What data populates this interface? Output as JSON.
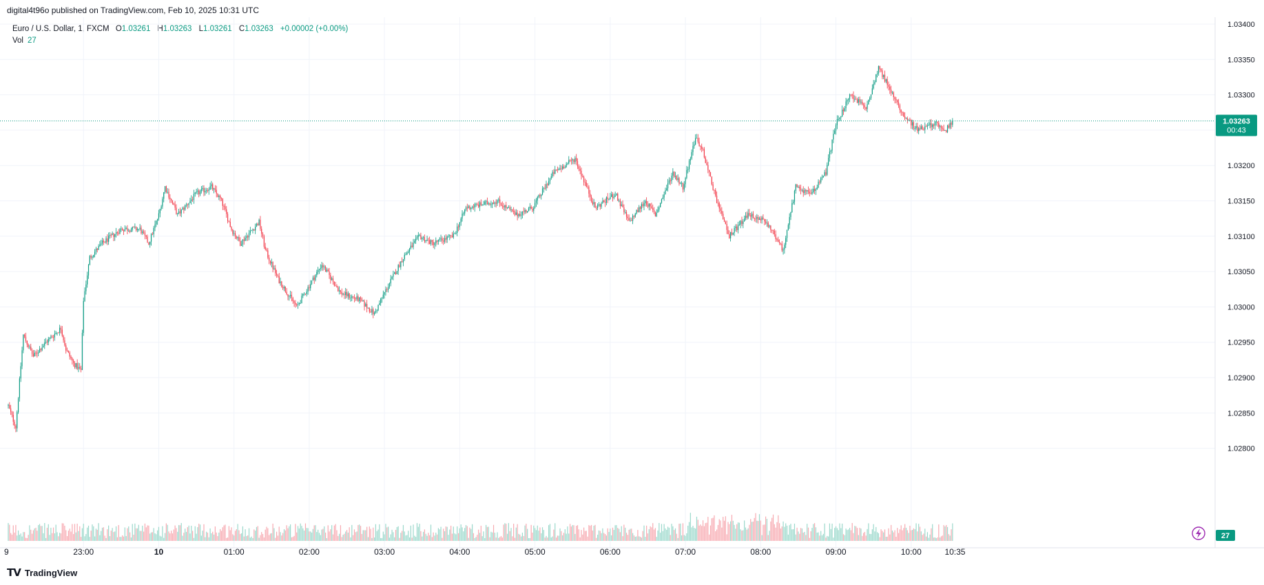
{
  "header": {
    "published": "digital4t96o published on TradingView.com, Feb 10, 2025 10:31 UTC"
  },
  "legend": {
    "symbol": "Euro / U.S. Dollar, 1, FXCM",
    "o_label": "O",
    "o": "1.03261",
    "h_label": "H",
    "h": "1.03263",
    "l_label": "L",
    "l": "1.03261",
    "c_label": "C",
    "c": "1.03263",
    "change": "+0.00002 (+0.00%)",
    "vol_label": "Vol",
    "vol": "27"
  },
  "price_badge": {
    "price": "1.03263",
    "countdown": "00:43"
  },
  "volume_badge": "27",
  "footer": {
    "brand": "TradingView"
  },
  "colors": {
    "up": "#089981",
    "down": "#f23645",
    "up_vol": "#9ad8cb",
    "down_vol": "#f7a9b0",
    "grid": "#f0f3fa",
    "axis_text": "#131722"
  },
  "chart_data": {
    "type": "candlestick",
    "symbol": "EUR/USD",
    "interval": "1 minute",
    "y_ticks": [
      1.034,
      1.0335,
      1.033,
      1.0325,
      1.032,
      1.0315,
      1.031,
      1.0305,
      1.03,
      1.0295,
      1.029,
      1.0285,
      1.028
    ],
    "y_tick_labels": [
      "1.03400",
      "1.03350",
      "1.03300",
      "1.03250",
      "1.03200",
      "1.03150",
      "1.03100",
      "1.03050",
      "1.03000",
      "1.02950",
      "1.02900",
      "1.02850",
      "1.02800"
    ],
    "ylim": [
      1.02785,
      1.0341
    ],
    "x_ticks": [
      {
        "label": "23:00",
        "minute": 60
      },
      {
        "label": "10",
        "minute": 120
      },
      {
        "label": "01:00",
        "minute": 180
      },
      {
        "label": "02:00",
        "minute": 240
      },
      {
        "label": "03:00",
        "minute": 300
      },
      {
        "label": "04:00",
        "minute": 360
      },
      {
        "label": "05:00",
        "minute": 420
      },
      {
        "label": "06:00",
        "minute": 480
      },
      {
        "label": "07:00",
        "minute": 540
      },
      {
        "label": "08:00",
        "minute": 600
      },
      {
        "label": "09:00",
        "minute": 660
      },
      {
        "label": "10:00",
        "minute": 720
      },
      {
        "label": "10:35",
        "minute": 755
      }
    ],
    "x_edge_label": "9",
    "last_price": 1.03263,
    "close_path": [
      {
        "minute": 0,
        "close": 1.0286
      },
      {
        "minute": 6,
        "close": 1.0283
      },
      {
        "minute": 12,
        "close": 1.0296
      },
      {
        "minute": 20,
        "close": 1.0293
      },
      {
        "minute": 30,
        "close": 1.0295
      },
      {
        "minute": 42,
        "close": 1.0297
      },
      {
        "minute": 46,
        "close": 1.0294
      },
      {
        "minute": 52,
        "close": 1.0292
      },
      {
        "minute": 58,
        "close": 1.0291
      },
      {
        "minute": 60,
        "close": 1.0301
      },
      {
        "minute": 65,
        "close": 1.0307
      },
      {
        "minute": 75,
        "close": 1.0309
      },
      {
        "minute": 90,
        "close": 1.0311
      },
      {
        "minute": 105,
        "close": 1.0311
      },
      {
        "minute": 112,
        "close": 1.0309
      },
      {
        "minute": 120,
        "close": 1.0313
      },
      {
        "minute": 125,
        "close": 1.0317
      },
      {
        "minute": 135,
        "close": 1.0313
      },
      {
        "minute": 150,
        "close": 1.0316
      },
      {
        "minute": 162,
        "close": 1.0317
      },
      {
        "minute": 170,
        "close": 1.0315
      },
      {
        "minute": 178,
        "close": 1.0311
      },
      {
        "minute": 185,
        "close": 1.0309
      },
      {
        "minute": 200,
        "close": 1.0312
      },
      {
        "minute": 205,
        "close": 1.0308
      },
      {
        "minute": 215,
        "close": 1.0304
      },
      {
        "minute": 230,
        "close": 1.03
      },
      {
        "minute": 250,
        "close": 1.0306
      },
      {
        "minute": 265,
        "close": 1.0302
      },
      {
        "minute": 280,
        "close": 1.0301
      },
      {
        "minute": 292,
        "close": 1.0299
      },
      {
        "minute": 300,
        "close": 1.0302
      },
      {
        "minute": 315,
        "close": 1.0307
      },
      {
        "minute": 328,
        "close": 1.031
      },
      {
        "minute": 338,
        "close": 1.0309
      },
      {
        "minute": 355,
        "close": 1.031
      },
      {
        "minute": 365,
        "close": 1.0314
      },
      {
        "minute": 390,
        "close": 1.0315
      },
      {
        "minute": 405,
        "close": 1.0313
      },
      {
        "minute": 418,
        "close": 1.0314
      },
      {
        "minute": 435,
        "close": 1.0319
      },
      {
        "minute": 452,
        "close": 1.0321
      },
      {
        "minute": 468,
        "close": 1.0314
      },
      {
        "minute": 484,
        "close": 1.0316
      },
      {
        "minute": 495,
        "close": 1.0312
      },
      {
        "minute": 508,
        "close": 1.0315
      },
      {
        "minute": 516,
        "close": 1.0313
      },
      {
        "minute": 530,
        "close": 1.0319
      },
      {
        "minute": 538,
        "close": 1.0317
      },
      {
        "minute": 548,
        "close": 1.0324
      },
      {
        "minute": 554,
        "close": 1.0322
      },
      {
        "minute": 565,
        "close": 1.0315
      },
      {
        "minute": 575,
        "close": 1.031
      },
      {
        "minute": 590,
        "close": 1.0313
      },
      {
        "minute": 605,
        "close": 1.0312
      },
      {
        "minute": 618,
        "close": 1.0308
      },
      {
        "minute": 628,
        "close": 1.0317
      },
      {
        "minute": 640,
        "close": 1.0316
      },
      {
        "minute": 652,
        "close": 1.0319
      },
      {
        "minute": 660,
        "close": 1.0326
      },
      {
        "minute": 672,
        "close": 1.033
      },
      {
        "minute": 684,
        "close": 1.0328
      },
      {
        "minute": 694,
        "close": 1.0334
      },
      {
        "minute": 705,
        "close": 1.033
      },
      {
        "minute": 715,
        "close": 1.0327
      },
      {
        "minute": 725,
        "close": 1.0325
      },
      {
        "minute": 740,
        "close": 1.0326
      },
      {
        "minute": 748,
        "close": 1.0325
      },
      {
        "minute": 753,
        "close": 1.03263
      }
    ]
  }
}
